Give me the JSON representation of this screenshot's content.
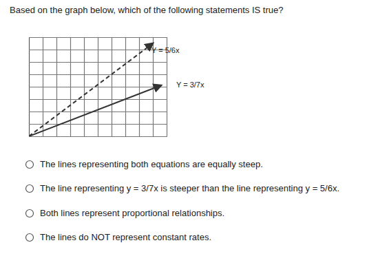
{
  "question": "Based on the graph below, which of the following statements IS true?",
  "chart_data": {
    "type": "line",
    "tick_labels": false,
    "grid": true,
    "xlim": [
      0,
      10
    ],
    "ylim": [
      0,
      8
    ],
    "xticks": [
      0,
      1,
      2,
      3,
      4,
      5,
      6,
      7,
      8,
      9,
      10
    ],
    "yticks": [
      0,
      1,
      2,
      3,
      4,
      5,
      6,
      7,
      8
    ],
    "series": [
      {
        "name": "Y = 5/6x",
        "color": "#333333",
        "line_style": "dashed",
        "marker": "arrow",
        "x": [
          0,
          9
        ],
        "values": [
          0,
          7.5
        ]
      },
      {
        "name": "Y = 3/7x",
        "color": "#333333",
        "line_style": "solid",
        "marker": "arrow",
        "x": [
          0,
          9.6
        ],
        "values": [
          0,
          4.11
        ]
      }
    ]
  },
  "options": [
    "The lines representing both equations are equally steep.",
    "The line representing y = 3/7x is steeper than the line representing y = 5/6x.",
    "Both lines represent proportional relationships.",
    "The lines do NOT represent constant rates."
  ]
}
